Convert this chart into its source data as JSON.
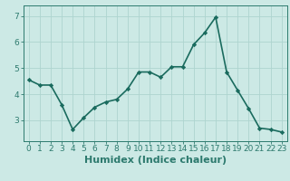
{
  "x": [
    0,
    1,
    2,
    3,
    4,
    5,
    6,
    7,
    8,
    9,
    10,
    11,
    12,
    13,
    14,
    15,
    16,
    17,
    18,
    19,
    20,
    21,
    22,
    23
  ],
  "y": [
    4.55,
    4.35,
    4.35,
    3.6,
    2.65,
    3.1,
    3.5,
    3.7,
    3.8,
    4.2,
    4.85,
    4.85,
    4.65,
    5.05,
    5.05,
    5.9,
    6.35,
    6.95,
    4.85,
    4.15,
    3.45,
    2.7,
    2.65,
    2.55
  ],
  "line_color": "#1a6b5e",
  "marker": "D",
  "marker_size": 2.2,
  "line_width": 1.2,
  "bg_color": "#cce9e5",
  "grid_color": "#aed4cf",
  "axis_color": "#2d7a6e",
  "xlabel": "Humidex (Indice chaleur)",
  "ylabel": "",
  "xlim": [
    -0.5,
    23.5
  ],
  "ylim": [
    2.2,
    7.4
  ],
  "yticks": [
    3,
    4,
    5,
    6,
    7
  ],
  "xticks": [
    0,
    1,
    2,
    3,
    4,
    5,
    6,
    7,
    8,
    9,
    10,
    11,
    12,
    13,
    14,
    15,
    16,
    17,
    18,
    19,
    20,
    21,
    22,
    23
  ],
  "tick_fontsize": 6.5,
  "xlabel_fontsize": 8.0
}
